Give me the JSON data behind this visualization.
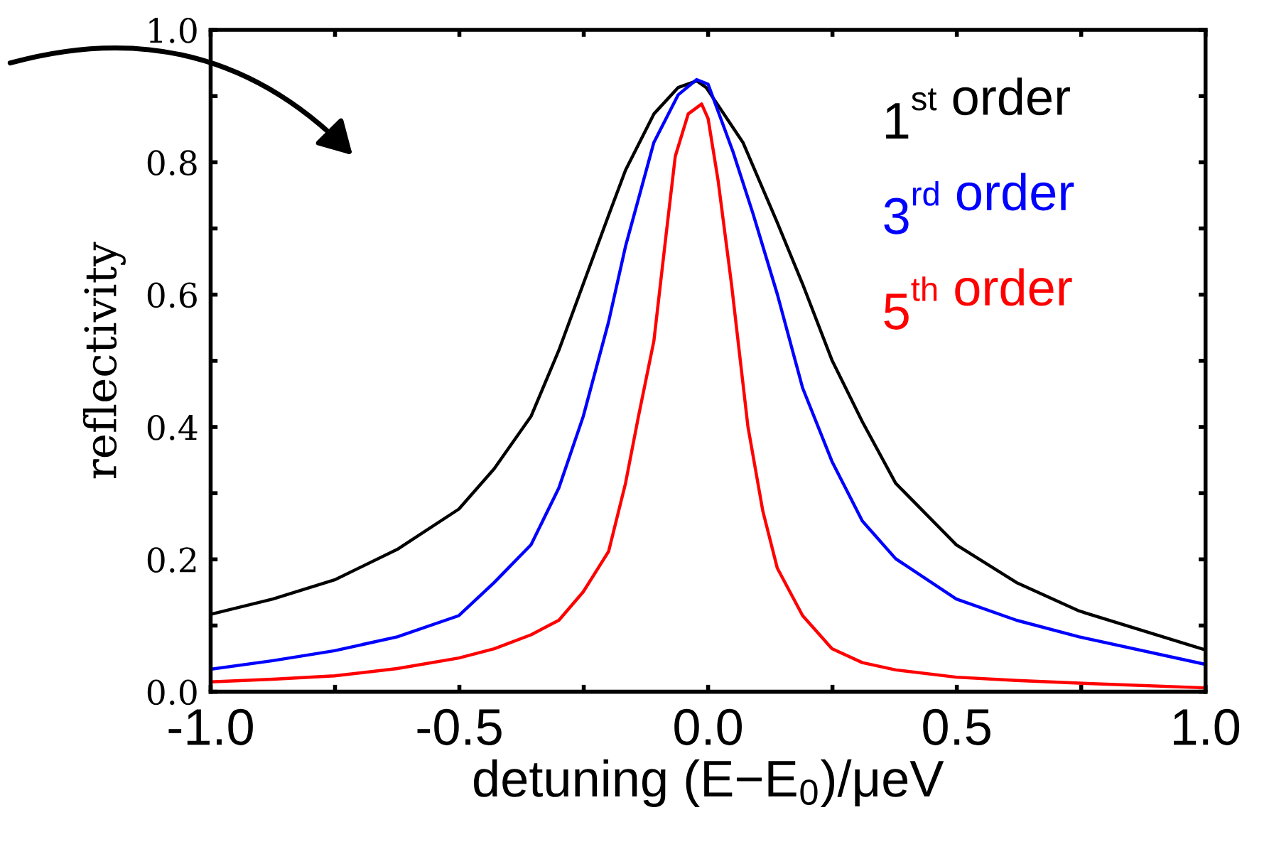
{
  "chart_data": {
    "type": "line",
    "xlabel": "detuning (E−E$_{0}$)/μeV",
    "ylabel": "reflectivity",
    "xlim": [
      -1.0,
      1.0
    ],
    "ylim": [
      0.0,
      1.0
    ],
    "xticks": [
      {
        "value": -1.0,
        "label": "-1.0"
      },
      {
        "value": -0.75,
        "label": null
      },
      {
        "value": -0.5,
        "label": "-0.5"
      },
      {
        "value": -0.25,
        "label": null
      },
      {
        "value": 0.0,
        "label": "0.0"
      },
      {
        "value": 0.25,
        "label": null
      },
      {
        "value": 0.5,
        "label": "0.5"
      },
      {
        "value": 0.75,
        "label": null
      },
      {
        "value": 1.0,
        "label": "1.0"
      }
    ],
    "yticks": [
      {
        "value": 0.0,
        "label": "0.0"
      },
      {
        "value": 0.1,
        "label": null
      },
      {
        "value": 0.2,
        "label": "0.2"
      },
      {
        "value": 0.3,
        "label": null
      },
      {
        "value": 0.4,
        "label": "0.4"
      },
      {
        "value": 0.5,
        "label": null
      },
      {
        "value": 0.6,
        "label": "0.6"
      },
      {
        "value": 0.7,
        "label": null
      },
      {
        "value": 0.8,
        "label": "0.8"
      },
      {
        "value": 0.9,
        "label": null
      },
      {
        "value": 1.0,
        "label": "1.0"
      }
    ],
    "grid": false,
    "legend": "top right",
    "marker": "none",
    "line_style": "solid",
    "series": [
      {
        "name": "1$^{st}$ order",
        "color": "#000000",
        "x": [
          -1.0,
          -0.875,
          -0.751,
          -0.625,
          -0.501,
          -0.43,
          -0.356,
          -0.3,
          -0.251,
          -0.2,
          -0.166,
          -0.109,
          -0.06,
          -0.023,
          -0.004,
          0.07,
          0.139,
          0.19,
          0.249,
          0.31,
          0.377,
          0.499,
          0.62,
          0.746,
          0.996
        ],
        "values": [
          0.117,
          0.14,
          0.169,
          0.215,
          0.276,
          0.337,
          0.416,
          0.516,
          0.616,
          0.72,
          0.788,
          0.873,
          0.913,
          0.923,
          0.913,
          0.83,
          0.709,
          0.616,
          0.501,
          0.408,
          0.315,
          0.222,
          0.165,
          0.122,
          0.064
        ]
      },
      {
        "name": "3$^{rd}$ order",
        "color": "#0000ff",
        "x": [
          -1.0,
          -0.875,
          -0.751,
          -0.625,
          -0.501,
          -0.43,
          -0.356,
          -0.3,
          -0.251,
          -0.2,
          -0.166,
          -0.109,
          -0.06,
          -0.023,
          0.0,
          0.05,
          0.09,
          0.139,
          0.19,
          0.249,
          0.31,
          0.377,
          0.499,
          0.62,
          0.746,
          0.996
        ],
        "values": [
          0.034,
          0.047,
          0.062,
          0.083,
          0.115,
          0.165,
          0.222,
          0.308,
          0.416,
          0.559,
          0.673,
          0.83,
          0.902,
          0.925,
          0.918,
          0.816,
          0.723,
          0.601,
          0.459,
          0.348,
          0.258,
          0.201,
          0.14,
          0.108,
          0.083,
          0.042
        ]
      },
      {
        "name": "5$^{th}$ order",
        "color": "#ff0000",
        "x": [
          -1.0,
          -0.875,
          -0.751,
          -0.625,
          -0.501,
          -0.43,
          -0.356,
          -0.3,
          -0.251,
          -0.2,
          -0.166,
          -0.14,
          -0.109,
          -0.085,
          -0.066,
          -0.04,
          -0.013,
          0.0,
          0.02,
          0.047,
          0.08,
          0.11,
          0.139,
          0.19,
          0.249,
          0.31,
          0.377,
          0.499,
          0.62,
          0.746,
          0.996
        ],
        "values": [
          0.015,
          0.019,
          0.024,
          0.035,
          0.051,
          0.065,
          0.086,
          0.108,
          0.151,
          0.212,
          0.315,
          0.416,
          0.53,
          0.687,
          0.809,
          0.873,
          0.888,
          0.866,
          0.773,
          0.616,
          0.401,
          0.273,
          0.187,
          0.115,
          0.065,
          0.044,
          0.033,
          0.022,
          0.017,
          0.013,
          0.006
        ]
      }
    ]
  }
}
